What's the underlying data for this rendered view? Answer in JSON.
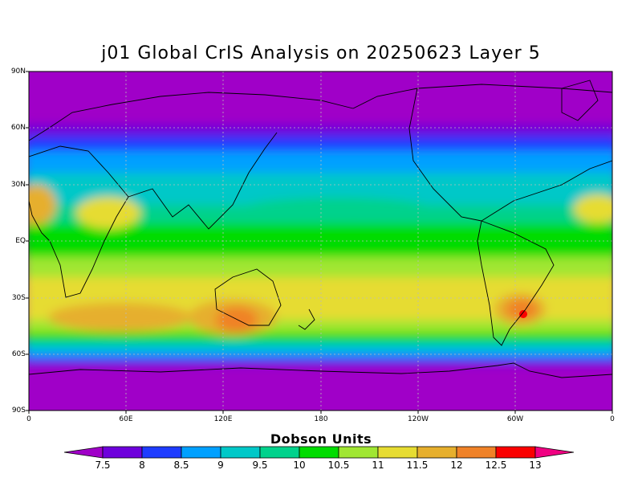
{
  "title": "j01 Global CrIS Analysis on 20250623 Layer 5",
  "lat_ticks": [
    "90N",
    "60N",
    "30N",
    "EQ",
    "30S",
    "60S",
    "90S"
  ],
  "lon_ticks": [
    "0",
    "60E",
    "120E",
    "180",
    "120W",
    "60W",
    "0"
  ],
  "colorbar": {
    "title": "Dobson Units",
    "labels": [
      "7.5",
      "8",
      "8.5",
      "9",
      "9.5",
      "10",
      "10.5",
      "11",
      "11.5",
      "12",
      "12.5",
      "13"
    ],
    "colors": [
      "#a000c8",
      "#6e00dc",
      "#1e3cff",
      "#00a0ff",
      "#00c8c8",
      "#00d28c",
      "#00dc00",
      "#a0e632",
      "#e6dc32",
      "#e6af2d",
      "#f08228",
      "#fa0000",
      "#f00082"
    ]
  },
  "map_colors": {
    "ocean_polar": "#a000c8",
    "coast": "#000000",
    "grid": "#bbbbbb"
  }
}
